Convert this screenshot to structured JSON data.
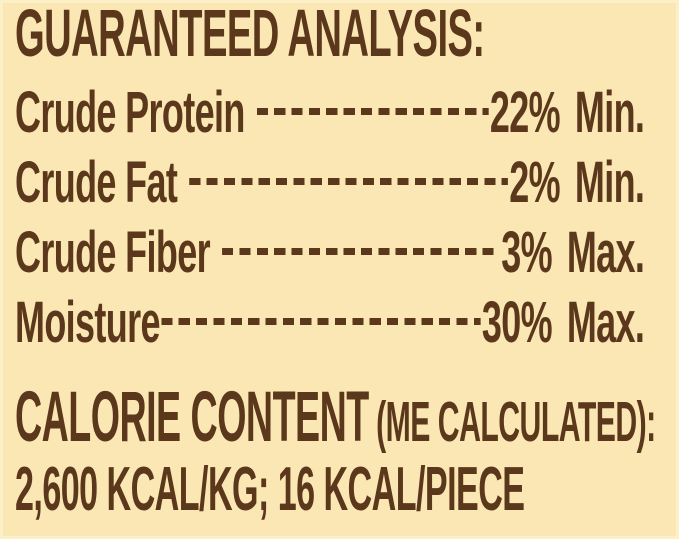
{
  "colors": {
    "brown": "#5B381C",
    "cream": "#FAE7B3"
  },
  "guaranteed_analysis": {
    "title": "GUARANTEED ANALYSIS:",
    "rows": [
      {
        "label": "Crude Protein",
        "value": "22%",
        "qualifier": "Min."
      },
      {
        "label": "Crude Fat",
        "value": "2%",
        "qualifier": "Min."
      },
      {
        "label": "Crude Fiber",
        "value": "3%",
        "qualifier": "Max."
      },
      {
        "label": "Moisture",
        "value": "30%",
        "qualifier": "Max."
      }
    ]
  },
  "calorie_content": {
    "title": "CALORIE CONTENT",
    "suffix": "(ME CALCULATED):",
    "values": "2,600 KCAL/KG; 16 KCAL/PIECE"
  }
}
